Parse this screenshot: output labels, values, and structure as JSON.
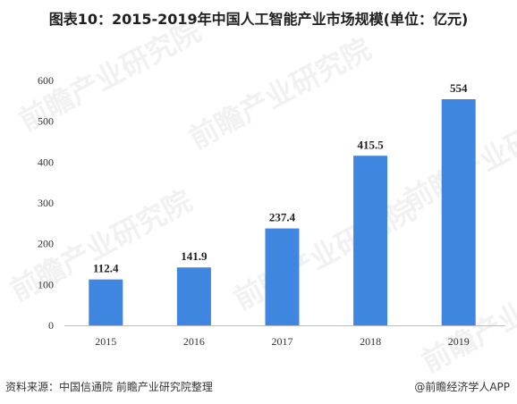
{
  "title": "图表10：2015-2019年中国人工智能产业市场规模(单位：亿元)",
  "footer": {
    "source": "资料来源：中国信通院 前瞻产业研究院整理",
    "brand": "@前瞻经济学人APP"
  },
  "watermark": {
    "text": "前瞻产业研究院"
  },
  "colors": {
    "bar": "#3f86e0",
    "axis": "#bdbdbd"
  },
  "chart_data": {
    "type": "bar",
    "title": "图表10：2015-2019年中国人工智能产业市场规模(单位：亿元)",
    "xlabel": "",
    "ylabel": "",
    "categories": [
      "2015",
      "2016",
      "2017",
      "2018",
      "2019"
    ],
    "values": [
      112.4,
      141.9,
      237.4,
      415.5,
      554
    ],
    "data_labels": [
      "112.4",
      "141.9",
      "237.4",
      "415.5",
      "554"
    ],
    "ylim": [
      0,
      600
    ],
    "yticks": [
      0,
      100,
      200,
      300,
      400,
      500,
      600
    ],
    "grid": false,
    "legend": "none"
  }
}
